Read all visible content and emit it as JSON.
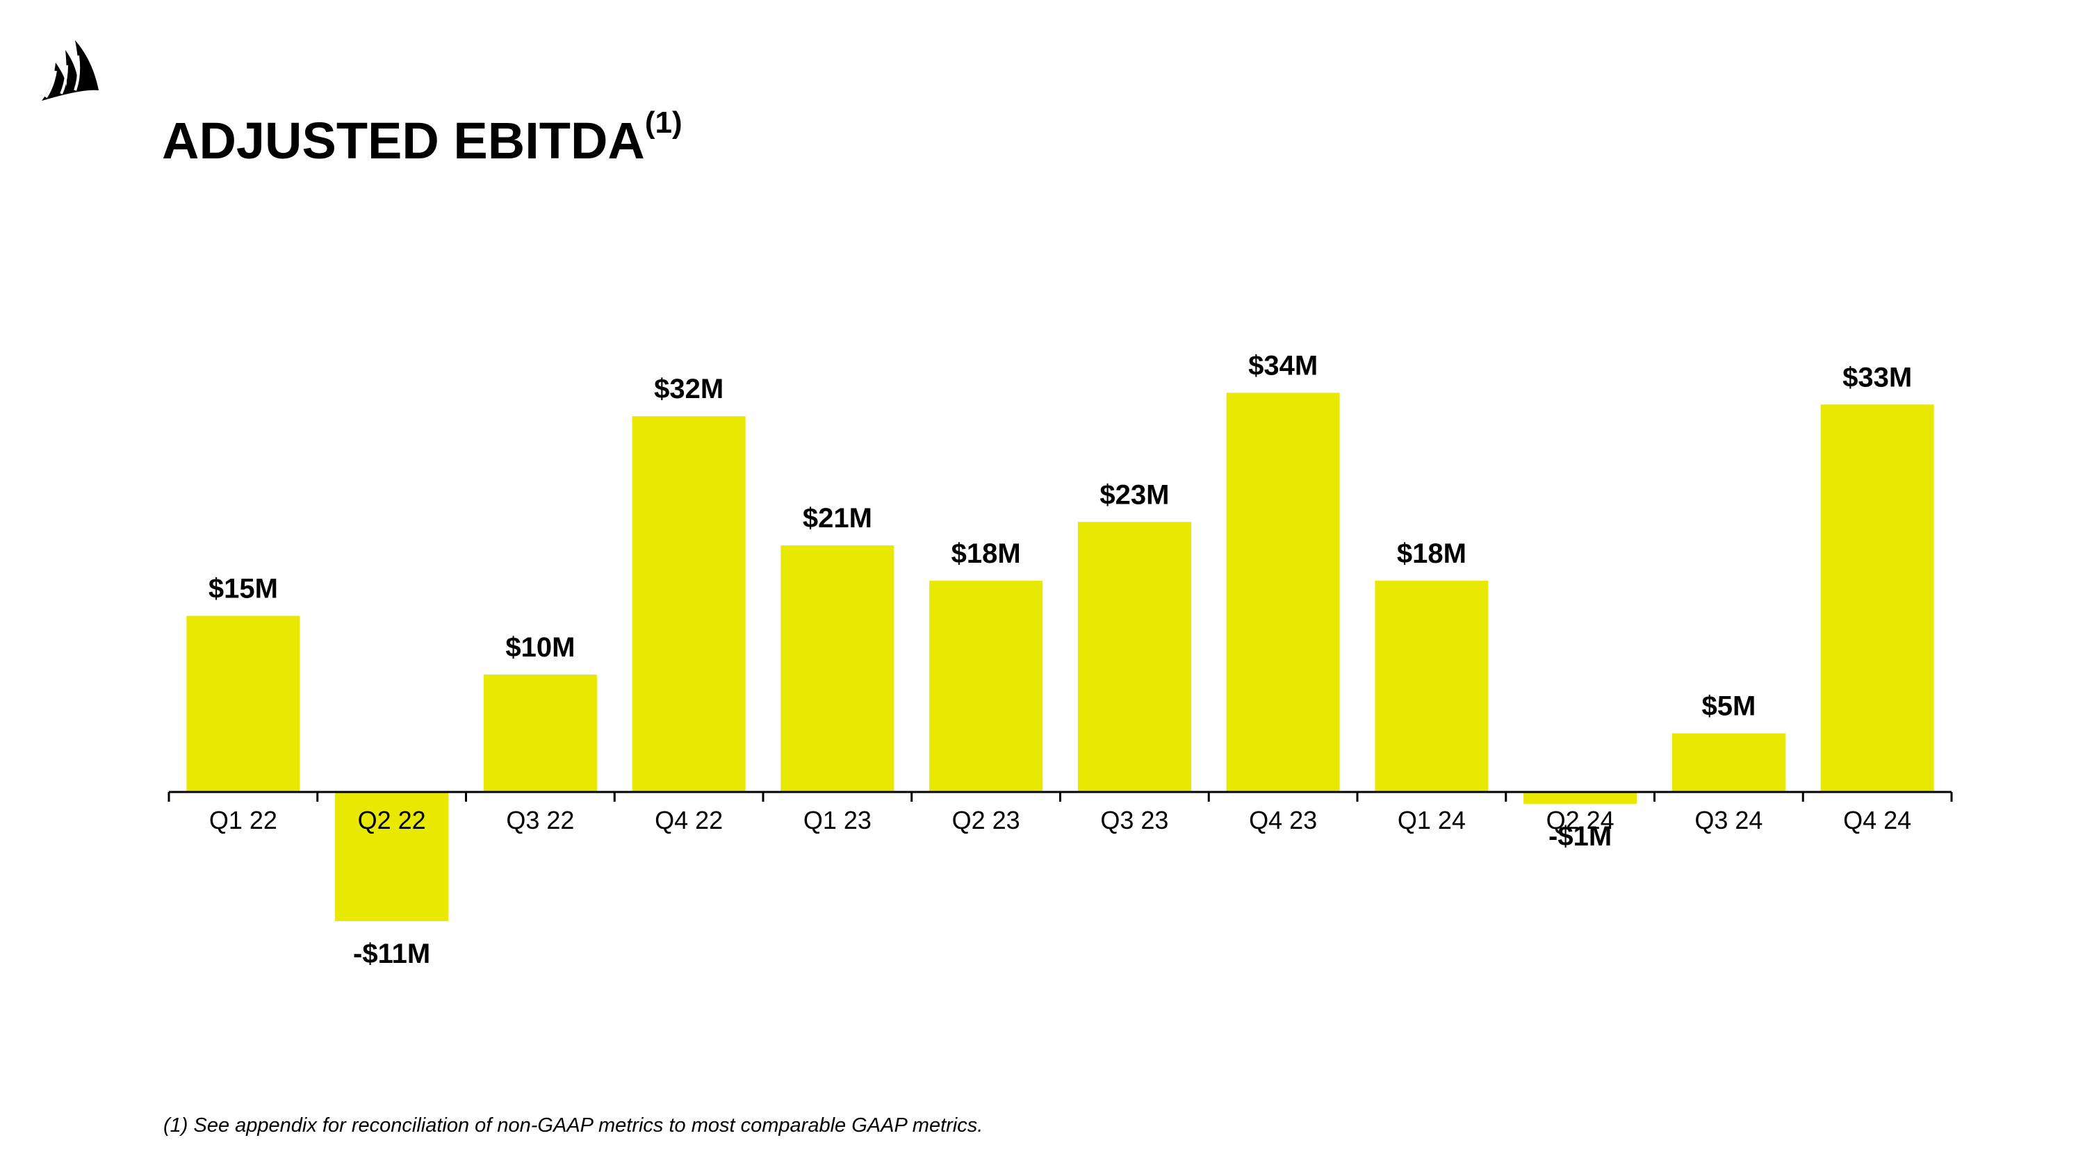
{
  "title": "ADJUSTED EBITDA",
  "title_superscript": "(1)",
  "footnote": "(1) See appendix for reconciliation of non-GAAP metrics to most comparable GAAP metrics.",
  "logo_icon": "sails-logo-icon",
  "colors": {
    "bar": "#E8E800",
    "text": "#000000",
    "axis": "#000000",
    "background": "#FFFFFF"
  },
  "chart_data": {
    "type": "bar",
    "title": "ADJUSTED EBITDA(1)",
    "categories": [
      "Q1 22",
      "Q2 22",
      "Q3 22",
      "Q4 22",
      "Q1 23",
      "Q2 23",
      "Q3 23",
      "Q4 23",
      "Q1 24",
      "Q2 24",
      "Q3 24",
      "Q4 24"
    ],
    "values": [
      15,
      -11,
      10,
      32,
      21,
      18,
      23,
      34,
      18,
      -1,
      5,
      33
    ],
    "labels": [
      "$15M",
      "-$11M",
      "$10M",
      "$32M",
      "$21M",
      "$18M",
      "$23M",
      "$34M",
      "$18M",
      "-$1M",
      "$5M",
      "$33M"
    ],
    "unit": "$M",
    "ylim": [
      -11,
      34
    ],
    "grid": false,
    "legend": "none"
  }
}
